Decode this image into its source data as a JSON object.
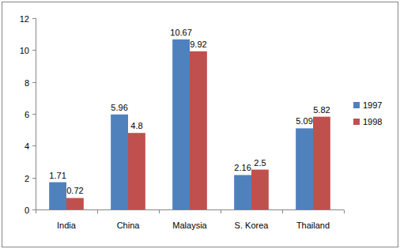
{
  "chart_data": {
    "type": "bar",
    "categories": [
      "India",
      "China",
      "Malaysia",
      "S. Korea",
      "Thailand"
    ],
    "series": [
      {
        "name": "1997",
        "color": "#4f81bd",
        "values": [
          1.71,
          5.96,
          10.67,
          2.16,
          5.09
        ]
      },
      {
        "name": "1998",
        "color": "#c0504d",
        "values": [
          0.72,
          4.8,
          9.92,
          2.5,
          5.82
        ]
      }
    ],
    "ylim": [
      0,
      12
    ],
    "yticks": [
      0,
      2,
      4,
      6,
      8,
      10,
      12
    ],
    "grid": false,
    "legend": "right",
    "data_labels": true
  }
}
